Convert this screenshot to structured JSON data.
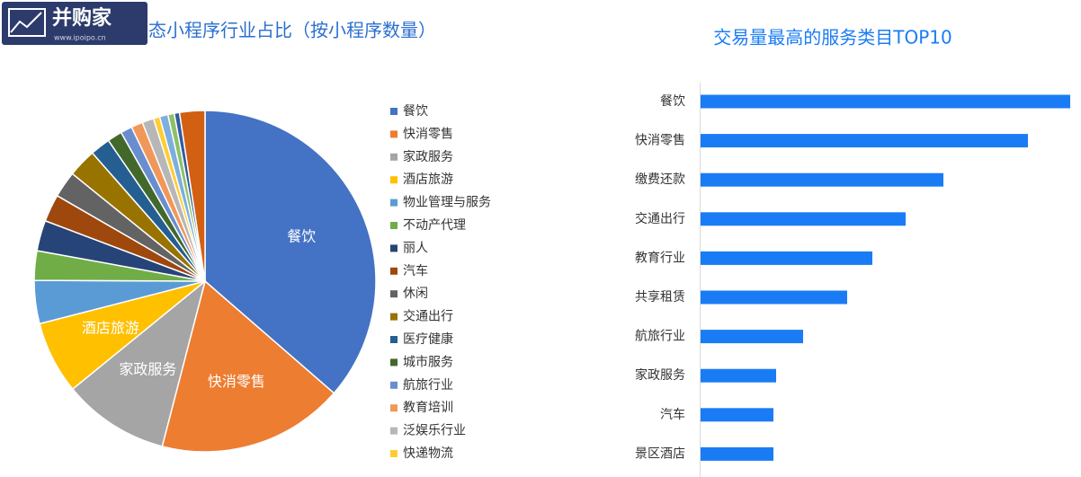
{
  "watermark": {
    "brand": "并购家",
    "site": "www.ipoipo.cn"
  },
  "chart_data": [
    {
      "type": "pie",
      "title": "态小程序行业占比（按小程序数量）",
      "categories": [
        "餐饮",
        "快消零售",
        "家政服务",
        "酒店旅游",
        "物业管理与服务",
        "不动产代理",
        "丽人",
        "汽车",
        "休闲",
        "交通出行",
        "医疗健康",
        "城市服务",
        "航旅行业",
        "教育培训",
        "泛娱乐行业",
        "快递物流",
        null,
        null,
        null,
        null
      ],
      "values": [
        36.5,
        17.7,
        10.1,
        6.9,
        4.1,
        2.8,
        2.9,
        2.6,
        2.5,
        2.7,
        1.9,
        1.4,
        1.1,
        1.1,
        1.1,
        0.6,
        0.8,
        0.6,
        0.5,
        2.4
      ],
      "colors": [
        "#4472c4",
        "#ed7d31",
        "#a5a5a5",
        "#ffc000",
        "#5b9bd5",
        "#70ad47",
        "#264478",
        "#9e480e",
        "#636363",
        "#997300",
        "#255e91",
        "#43682b",
        "#698ed0",
        "#f1975a",
        "#b7b7b7",
        "#ffcd33",
        "#7cafdd",
        "#8cc168",
        "#335aa1",
        "#d26012"
      ],
      "legend": "right"
    },
    {
      "type": "hbar",
      "title": "交易量最高的服务类目TOP10",
      "categories": [
        "餐饮",
        "快消零售",
        "缴费还款",
        "交通出行",
        "教育行业",
        "共享租赁",
        "航旅行业",
        "家政服务",
        "汽车",
        "景区酒店"
      ],
      "values": [
        411,
        364,
        270,
        228,
        191,
        163,
        114,
        84,
        81,
        81
      ],
      "xlim": [
        0,
        411
      ],
      "color": "#1a7cf5"
    }
  ]
}
